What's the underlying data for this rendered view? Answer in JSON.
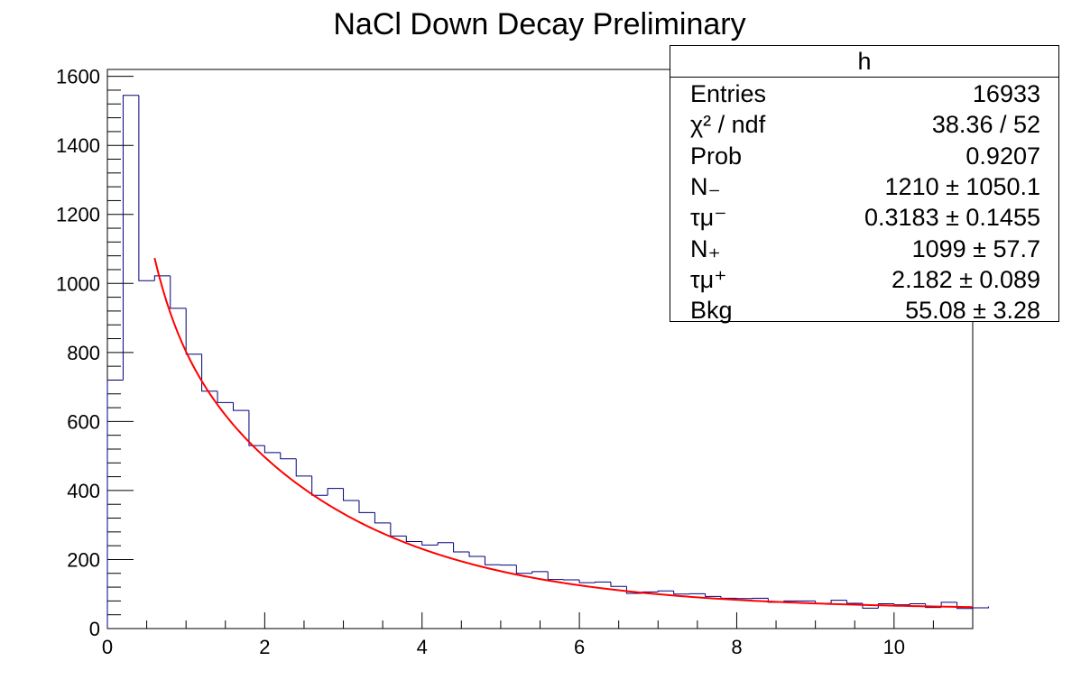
{
  "chart_data": {
    "type": "histogram",
    "title": "NaCl Down Decay Preliminary",
    "xlabel": "",
    "ylabel": "",
    "xlim": [
      0,
      11
    ],
    "ylim": [
      0,
      1620
    ],
    "x_ticks": [
      "0",
      "2",
      "4",
      "6",
      "8",
      "10"
    ],
    "y_ticks": [
      "0",
      "200",
      "400",
      "600",
      "800",
      "1000",
      "1200",
      "1400",
      "1600"
    ],
    "bin_width": 0.2,
    "histogram_values": [
      720,
      1545,
      1008,
      1022,
      928,
      795,
      688,
      655,
      632,
      530,
      510,
      492,
      442,
      386,
      406,
      371,
      336,
      306,
      268,
      252,
      242,
      249,
      222,
      209,
      185,
      184,
      160,
      165,
      142,
      141,
      133,
      135,
      122,
      102,
      106,
      109,
      100,
      101,
      93,
      88,
      87,
      88,
      76,
      80,
      80,
      73,
      82,
      73,
      59,
      72,
      69,
      72,
      61,
      76,
      58,
      64,
      60
    ],
    "fit": {
      "x_start": 0.6,
      "N_minus": 1210,
      "tau_minus": 0.3183,
      "N_plus": 1099,
      "tau_plus": 2.182,
      "bkg": 55.08
    },
    "hist_color": "#00007f",
    "fit_color": "#ff0000",
    "stats_box": {
      "title": "h",
      "rows": [
        {
          "name": "Entries",
          "value": "16933"
        },
        {
          "name": "χ² / ndf",
          "value": "38.36 / 52"
        },
        {
          "name": "Prob",
          "value": "0.9207"
        },
        {
          "name": "N₋",
          "value": "1210 ± 1050.1"
        },
        {
          "name": "τμ⁻",
          "value": "0.3183 ± 0.1455"
        },
        {
          "name": "N₊",
          "value": "1099 ± 57.7"
        },
        {
          "name": "τμ⁺",
          "value": "2.182 ± 0.089"
        },
        {
          "name": "Bkg",
          "value": "55.08 ± 3.28"
        }
      ]
    }
  }
}
